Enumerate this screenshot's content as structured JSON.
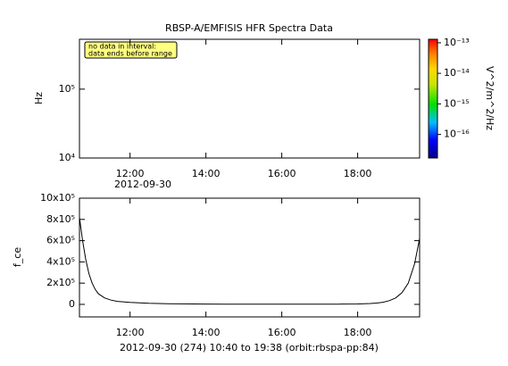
{
  "chart_data": [
    {
      "type": "spectrogram",
      "title": "RBSP-A/EMFISIS  HFR Spectra Data",
      "ylabel": "Hz",
      "annotation": [
        "no data in interval:",
        "data ends before range"
      ],
      "x_date_label": "2012-09-30",
      "xlim": [
        640,
        1178
      ],
      "xticks": [
        {
          "value": 720,
          "label": "12:00"
        },
        {
          "value": 840,
          "label": "14:00"
        },
        {
          "value": 960,
          "label": "16:00"
        },
        {
          "value": 1080,
          "label": "18:00"
        }
      ],
      "ylog": true,
      "ylim": [
        10000,
        530000
      ],
      "yticks": [
        {
          "value": 10000,
          "label": "10⁴"
        },
        {
          "value": 100000,
          "label": "10⁵"
        }
      ],
      "colorbar": {
        "label": "V^2/m^2/Hz",
        "log": true,
        "lim": [
          1.7e-17,
          1.3e-13
        ],
        "ticks": [
          {
            "value": 1e-13,
            "label": "10⁻¹³"
          },
          {
            "value": 1e-14,
            "label": "10⁻¹⁴"
          },
          {
            "value": 1e-15,
            "label": "10⁻¹⁵"
          },
          {
            "value": 1e-16,
            "label": "10⁻¹⁶"
          }
        ]
      }
    },
    {
      "type": "line",
      "ylabel": "f_ce",
      "xlabel": "2012-09-30 (274) 10:40 to 19:38 (orbit:rbspa-pp:84)",
      "xlim": [
        640,
        1178
      ],
      "xticks": [
        {
          "value": 720,
          "label": "12:00"
        },
        {
          "value": 840,
          "label": "14:00"
        },
        {
          "value": 960,
          "label": "16:00"
        },
        {
          "value": 1080,
          "label": "18:00"
        }
      ],
      "ylog": false,
      "ylim": [
        -118000,
        1000000
      ],
      "yticks": [
        0,
        {
          "value": 200000,
          "label": "2x10⁵"
        },
        {
          "value": 400000,
          "label": "4x10⁵"
        },
        {
          "value": 600000,
          "label": "6x10⁵"
        },
        {
          "value": 800000,
          "label": "8x10⁵"
        },
        {
          "value": 1000000,
          "label": "10x10⁵"
        }
      ],
      "color": "#000000",
      "x": [
        640,
        645,
        650,
        655,
        660,
        665,
        670,
        680,
        690,
        700,
        720,
        750,
        780,
        840,
        900,
        960,
        1020,
        1050,
        1080,
        1100,
        1110,
        1120,
        1130,
        1140,
        1150,
        1160,
        1170,
        1178
      ],
      "values": [
        820000,
        600000,
        420000,
        290000,
        200000,
        140000,
        100000,
        60000,
        40000,
        28000,
        18000,
        10000,
        6000,
        3000,
        1500,
        1000,
        1200,
        2000,
        4000,
        8000,
        12000,
        20000,
        35000,
        60000,
        110000,
        200000,
        380000,
        620000
      ]
    }
  ]
}
